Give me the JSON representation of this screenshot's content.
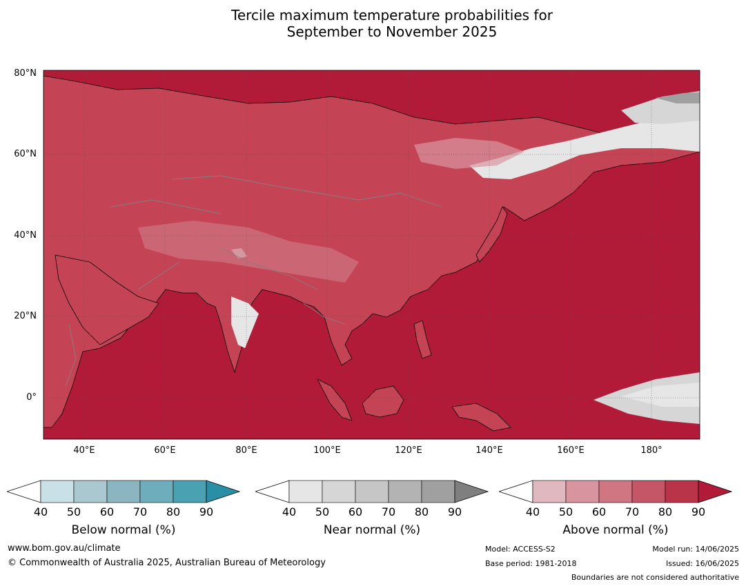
{
  "title": {
    "line1": "Tercile maximum temperature probabilities for",
    "line2": "September to November 2025"
  },
  "map": {
    "lat_labels": [
      "80°N",
      "60°N",
      "40°N",
      "20°N",
      "0°"
    ],
    "lon_labels": [
      "40°E",
      "60°E",
      "80°E",
      "100°E",
      "120°E",
      "140°E",
      "160°E",
      "180°"
    ],
    "lat_range": [
      -10,
      80
    ],
    "lon_range": [
      30,
      192
    ],
    "dominant_category": "Above normal",
    "colors": {
      "ocean_base": "#b21b38",
      "land_base": "#c44455",
      "coastline": "#000000",
      "borders": "#808080"
    }
  },
  "legends": [
    {
      "label": "Below normal (%)",
      "ticks": [
        "40",
        "50",
        "60",
        "70",
        "80",
        "90"
      ],
      "colors": [
        "#c8e0e6",
        "#a9c8cf",
        "#8bb5c0",
        "#6eaebc",
        "#4aa1b1",
        "#2a8ea6"
      ]
    },
    {
      "label": "Near normal (%)",
      "ticks": [
        "40",
        "50",
        "60",
        "70",
        "80",
        "90"
      ],
      "colors": [
        "#e6e6e6",
        "#d6d6d6",
        "#c6c6c6",
        "#b3b3b3",
        "#a0a0a0",
        "#7f7f7f"
      ]
    },
    {
      "label": "Above normal (%)",
      "ticks": [
        "40",
        "50",
        "60",
        "70",
        "80",
        "90"
      ],
      "colors": [
        "#e0b8bf",
        "#d9959f",
        "#cf7682",
        "#c45667",
        "#b93448",
        "#b21b38"
      ]
    }
  ],
  "footer": {
    "website": "www.bom.gov.au/climate",
    "copyright": "© Commonwealth of Australia 2025, Australian Bureau of Meteorology",
    "model": "Model: ACCESS-S2",
    "base_period": "Base period: 1981-2018",
    "model_run": "Model run: 14/06/2025",
    "issued": "Issued: 16/06/2025",
    "disclaimer": "Boundaries are not considered authoritative"
  }
}
